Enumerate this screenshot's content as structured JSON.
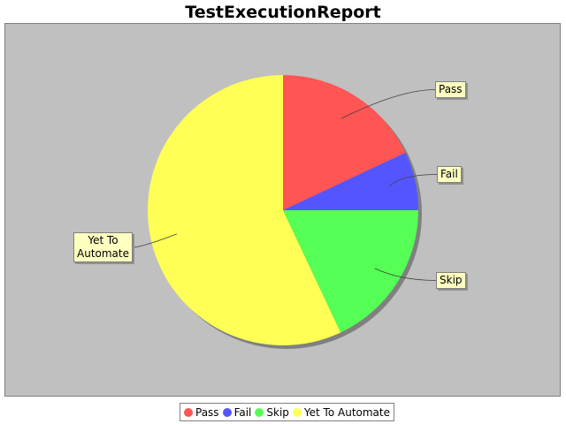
{
  "chart_data": {
    "type": "pie",
    "title": "TestExecutionReport",
    "slices": [
      {
        "name": "Pass",
        "value": 18,
        "color": "#ff5555"
      },
      {
        "name": "Fail",
        "value": 7,
        "color": "#5555ff"
      },
      {
        "name": "Skip",
        "value": 18,
        "color": "#55ff55"
      },
      {
        "name": "Yet To Automate",
        "value": 57,
        "color": "#ffff55"
      }
    ],
    "slice_labels": [
      "Pass",
      "Fail",
      "Skip",
      "Yet To\nAutomate"
    ],
    "legend": {
      "placement": "bottom",
      "entries": [
        "Pass",
        "Fail",
        "Skip",
        "Yet To Automate"
      ]
    },
    "background_color": "#c0c0c0"
  }
}
